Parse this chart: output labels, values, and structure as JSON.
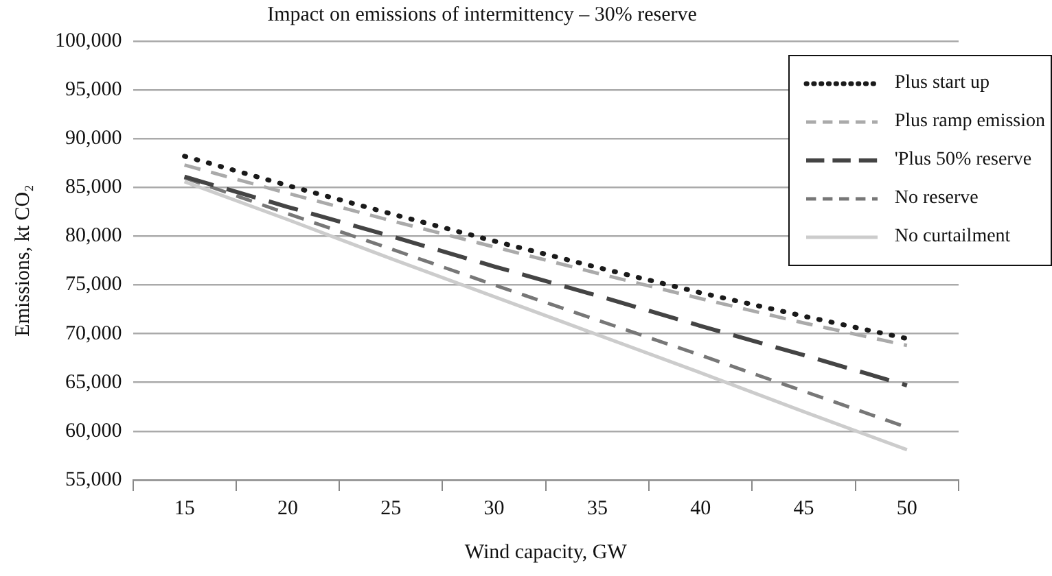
{
  "chart_data": {
    "type": "line",
    "title": "Impact on emissions of intermittency – 30% reserve",
    "xlabel": "Wind capacity, GW",
    "ylabel": "Emissions, kt CO₂",
    "categories": [
      "15",
      "20",
      "25",
      "30",
      "35",
      "40",
      "45",
      "50"
    ],
    "series": [
      {
        "name": "Plus start up",
        "color": "#1a1a1a",
        "line_style": "dotted",
        "values": [
          88200,
          85200,
          82300,
          79500,
          76800,
          74200,
          71800,
          69500
        ]
      },
      {
        "name": "Plus ramp emission",
        "color": "#aaaaaa",
        "line_style": "dashed",
        "values": [
          87300,
          84400,
          81600,
          78900,
          76200,
          73600,
          71100,
          68800
        ]
      },
      {
        "name": "'Plus 50% reserve",
        "color": "#444444",
        "line_style": "dashed",
        "values": [
          86100,
          83000,
          80000,
          76900,
          73900,
          70800,
          67800,
          64700
        ]
      },
      {
        "name": "No reserve",
        "color": "#777777",
        "line_style": "dashed",
        "values": [
          86000,
          82300,
          78700,
          75000,
          71400,
          67800,
          64100,
          60400
        ]
      },
      {
        "name": "No curtailment",
        "color": "#cccccc",
        "line_style": "solid",
        "values": [
          85600,
          81700,
          77700,
          73800,
          69900,
          66000,
          62000,
          58100
        ]
      }
    ],
    "ylim": [
      55000,
      100000
    ],
    "yticks": [
      {
        "value": 55000,
        "label": "55,000"
      },
      {
        "value": 60000,
        "label": "60,000"
      },
      {
        "value": 65000,
        "label": "65,000"
      },
      {
        "value": 70000,
        "label": "70,000"
      },
      {
        "value": 75000,
        "label": "75,000"
      },
      {
        "value": 80000,
        "label": "80,000"
      },
      {
        "value": 85000,
        "label": "85,000"
      },
      {
        "value": 90000,
        "label": "90,000"
      },
      {
        "value": 95000,
        "label": "95,000"
      },
      {
        "value": 100000,
        "label": "100,000"
      }
    ],
    "grid": "y",
    "legend": "top right",
    "marker": "none"
  }
}
